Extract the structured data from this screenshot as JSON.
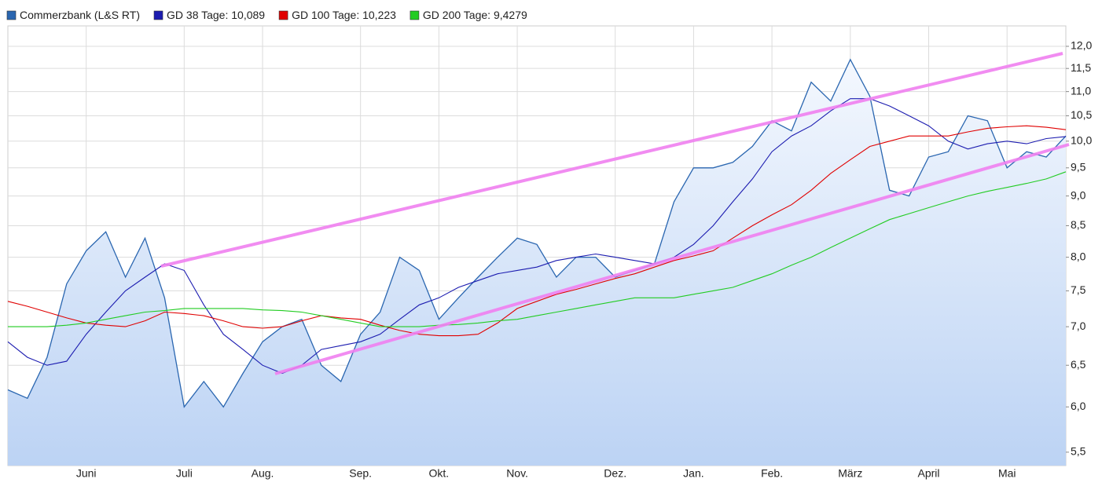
{
  "chart_data": {
    "type": "line",
    "log_scale": true,
    "grid": true,
    "categories": [
      null,
      null,
      null,
      null,
      "Juni",
      null,
      null,
      null,
      null,
      "Juli",
      null,
      null,
      null,
      "Aug.",
      null,
      null,
      null,
      null,
      "Sep.",
      null,
      null,
      null,
      "Okt.",
      null,
      null,
      null,
      "Nov.",
      null,
      null,
      null,
      null,
      "Dez.",
      null,
      null,
      null,
      "Jan.",
      null,
      null,
      null,
      "Feb.",
      null,
      null,
      null,
      "März",
      null,
      null,
      null,
      "April",
      null,
      null,
      null,
      "Mai",
      null,
      null,
      null
    ],
    "ylim": [
      5.36,
      12.48
    ],
    "yticks": [
      {
        "value": 5.5,
        "label": "5,5"
      },
      {
        "value": 6,
        "label": "6,0"
      },
      {
        "value": 6.5,
        "label": "6,5"
      },
      {
        "value": 7,
        "label": "7,0"
      },
      {
        "value": 7.5,
        "label": "7,5"
      },
      {
        "value": 8,
        "label": "8,0"
      },
      {
        "value": 8.5,
        "label": "8,5"
      },
      {
        "value": 9,
        "label": "9,0"
      },
      {
        "value": 9.5,
        "label": "9,5"
      },
      {
        "value": 10,
        "label": "10,0"
      },
      {
        "value": 10.5,
        "label": "10,5"
      },
      {
        "value": 11,
        "label": "11,0"
      },
      {
        "value": 11.5,
        "label": "11,5"
      },
      {
        "value": 12,
        "label": "12,0"
      }
    ],
    "series": [
      {
        "name": "Commerzbank (L&S RT)",
        "color": "#2a66b0",
        "area": true,
        "values": [
          6.2,
          6.1,
          6.6,
          7.6,
          8.1,
          8.4,
          7.7,
          8.3,
          7.4,
          6.0,
          6.3,
          6.0,
          6.4,
          6.8,
          7.0,
          7.1,
          6.5,
          6.3,
          6.9,
          7.2,
          8.0,
          7.8,
          7.1,
          7.4,
          7.7,
          8.0,
          8.3,
          8.2,
          7.7,
          8.0,
          8.0,
          7.7,
          7.8,
          7.9,
          8.9,
          9.5,
          9.5,
          9.6,
          9.9,
          10.4,
          10.2,
          11.2,
          10.8,
          11.7,
          10.9,
          9.1,
          9.0,
          9.7,
          9.8,
          10.5,
          10.4,
          9.5,
          9.8,
          9.7,
          10.1
        ]
      },
      {
        "name": "GD 38 Tage: 10,089",
        "color": "#1c1cb0",
        "values": [
          6.8,
          6.6,
          6.5,
          6.55,
          6.9,
          7.2,
          7.5,
          7.7,
          7.9,
          7.8,
          7.3,
          6.9,
          6.7,
          6.5,
          6.4,
          6.5,
          6.7,
          6.75,
          6.8,
          6.9,
          7.1,
          7.3,
          7.4,
          7.55,
          7.65,
          7.75,
          7.8,
          7.85,
          7.95,
          8.0,
          8.05,
          8.0,
          7.95,
          7.9,
          8.0,
          8.2,
          8.5,
          8.9,
          9.3,
          9.8,
          10.1,
          10.3,
          10.6,
          10.85,
          10.85,
          10.7,
          10.5,
          10.3,
          10.0,
          9.85,
          9.95,
          10.0,
          9.95,
          10.05,
          10.089
        ]
      },
      {
        "name": "GD 100 Tage: 10,223",
        "color": "#e00000",
        "values": [
          7.35,
          7.28,
          7.2,
          7.12,
          7.05,
          7.02,
          7.0,
          7.08,
          7.2,
          7.18,
          7.15,
          7.08,
          7.0,
          6.98,
          7.0,
          7.08,
          7.15,
          7.12,
          7.1,
          7.02,
          6.95,
          6.9,
          6.88,
          6.88,
          6.9,
          7.05,
          7.25,
          7.35,
          7.45,
          7.52,
          7.6,
          7.68,
          7.75,
          7.85,
          7.95,
          8.02,
          8.1,
          8.3,
          8.5,
          8.68,
          8.85,
          9.1,
          9.4,
          9.65,
          9.9,
          10.0,
          10.1,
          10.1,
          10.1,
          10.18,
          10.25,
          10.28,
          10.3,
          10.27,
          10.223
        ]
      },
      {
        "name": "GD 200 Tage: 9,4279",
        "color": "#22cc22",
        "values": [
          7.0,
          7.0,
          7.0,
          7.02,
          7.05,
          7.1,
          7.15,
          7.2,
          7.22,
          7.25,
          7.25,
          7.25,
          7.25,
          7.23,
          7.22,
          7.2,
          7.15,
          7.1,
          7.05,
          7.0,
          7.0,
          7.0,
          7.02,
          7.03,
          7.05,
          7.08,
          7.1,
          7.15,
          7.2,
          7.25,
          7.3,
          7.35,
          7.4,
          7.4,
          7.4,
          7.45,
          7.5,
          7.55,
          7.65,
          7.75,
          7.88,
          8.0,
          8.15,
          8.3,
          8.45,
          8.6,
          8.7,
          8.8,
          8.9,
          9.0,
          9.08,
          9.15,
          9.22,
          9.3,
          9.4279
        ]
      }
    ]
  }
}
